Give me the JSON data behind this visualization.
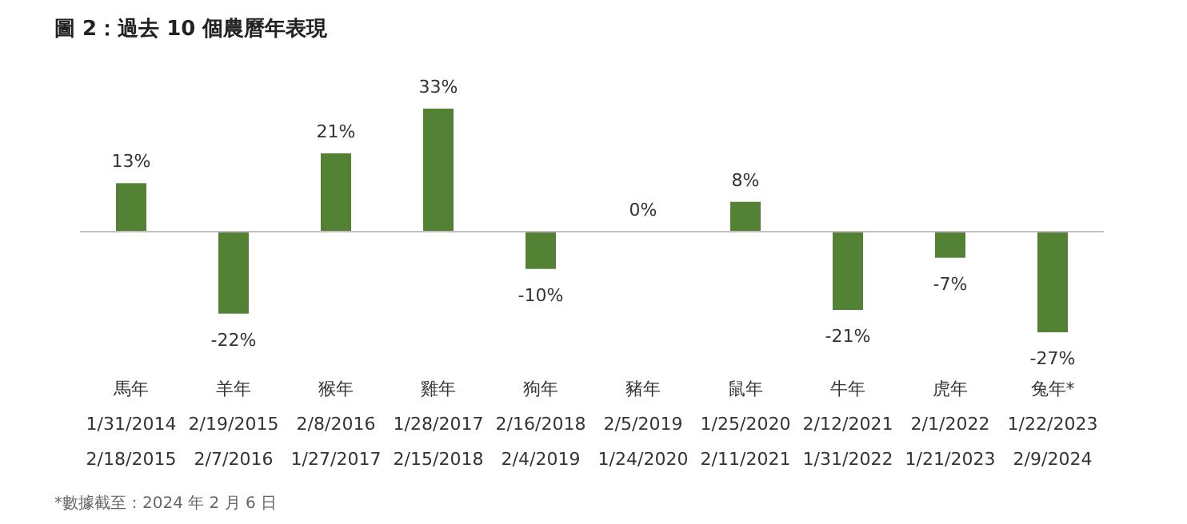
{
  "chart_data": {
    "type": "bar",
    "title": "圖 2：過去 10 個農曆年表現",
    "categories": [
      "馬年\n1/31/2014\n2/18/2015",
      "羊年\n2/19/2015\n2/7/2016",
      "猴年\n2/8/2016\n1/27/2017",
      "雞年\n1/28/2017\n2/15/2018",
      "狗年\n2/16/2018\n2/4/2019",
      "豬年\n2/5/2019\n1/24/2020",
      "鼠年\n1/25/2020\n2/11/2021",
      "牛年\n2/12/2021\n1/31/2022",
      "虎年\n2/1/2022\n1/21/2023",
      "兔年*\n1/22/2023\n2/9/2024"
    ],
    "values": [
      13,
      -22,
      21,
      33,
      -10,
      0,
      8,
      -21,
      -7,
      -27
    ],
    "value_labels": [
      "13%",
      "-22%",
      "21%",
      "33%",
      "-10%",
      "0%",
      "8%",
      "-21%",
      "-7%",
      "-27%"
    ],
    "color": "#548235",
    "annotations": [
      "*數據截至：2024 年 2 月 6 日"
    ]
  }
}
